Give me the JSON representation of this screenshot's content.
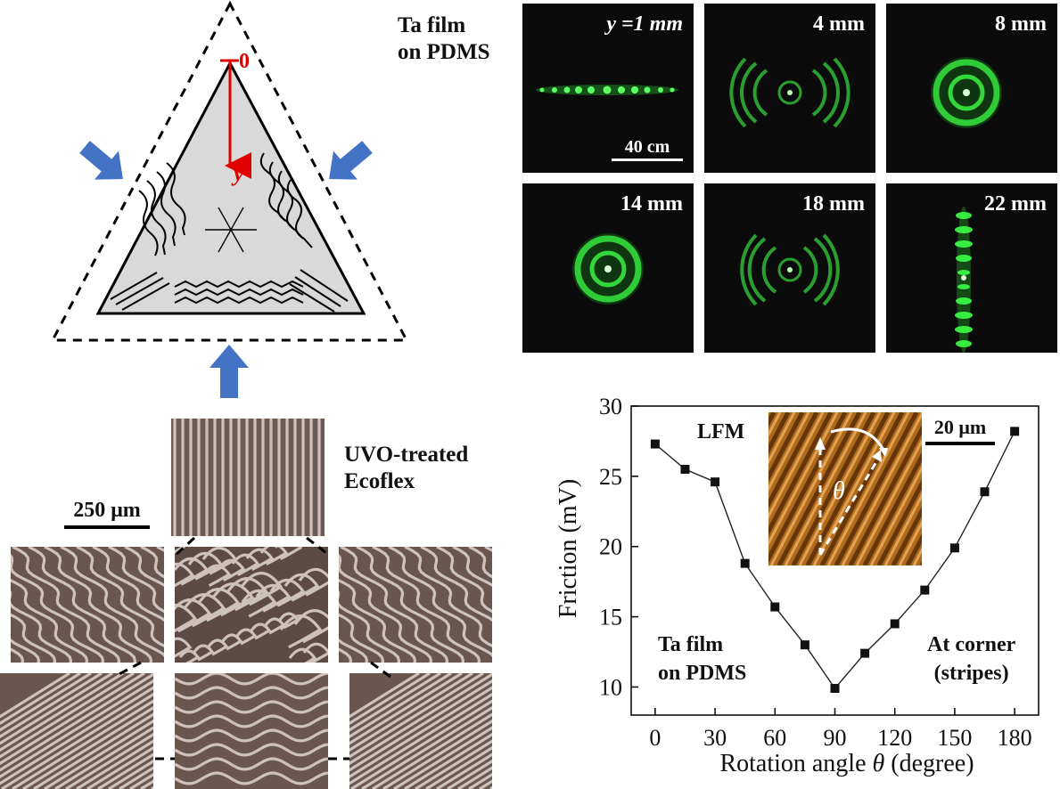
{
  "diagram": {
    "origin_label": "0",
    "axis_label": "y",
    "colors": {
      "arrow_blue": "#4472c4",
      "axis_red": "#e00000",
      "fill_gray": "#d9d9d9"
    }
  },
  "diffraction": {
    "title_line1": "Ta film",
    "title_line2": "on PDMS",
    "scale_label": "40 cm",
    "panels": [
      {
        "label": "y =1 mm",
        "pattern": "horizontal-line"
      },
      {
        "label": "4 mm",
        "pattern": "arcs-horizontal"
      },
      {
        "label": "8 mm",
        "pattern": "rings"
      },
      {
        "label": "14 mm",
        "pattern": "rings"
      },
      {
        "label": "18 mm",
        "pattern": "arcs-horizontal"
      },
      {
        "label": "22 mm",
        "pattern": "vertical-line"
      }
    ],
    "colors": {
      "laser_green": "#3cff46",
      "background": "#0b0b0b"
    }
  },
  "micrographs": {
    "title_line1": "UVO-treated",
    "title_line2": "Ecoflex",
    "scale_label": "250 μm",
    "panels": [
      "straight-vertical-stripes",
      "wavy-stripes",
      "labyrinth",
      "wavy-stripes",
      "diagonal-stripes",
      "wavy-horizontal",
      "diagonal-stripes"
    ]
  },
  "chart_data": {
    "type": "line",
    "x": [
      0,
      15,
      30,
      45,
      60,
      75,
      90,
      105,
      120,
      135,
      150,
      165,
      180
    ],
    "y": [
      27.3,
      25.5,
      24.6,
      18.8,
      15.7,
      13.0,
      9.9,
      12.4,
      14.5,
      16.9,
      19.9,
      23.9,
      28.2
    ],
    "xlabel_prefix": "Rotation angle ",
    "xlabel_symbol": "θ",
    "xlabel_suffix": " (degree)",
    "ylabel": "Friction (mV)",
    "xlim": [
      -12,
      192
    ],
    "ylim": [
      8,
      30
    ],
    "xticks": [
      0,
      30,
      60,
      90,
      120,
      150,
      180
    ],
    "yticks": [
      10,
      15,
      20,
      25,
      30
    ],
    "grid": false,
    "marker": "square",
    "inset": {
      "title": "LFM",
      "scale_label": "20 μm",
      "angle_symbol": "θ"
    },
    "annotations": {
      "left_line1": "Ta film",
      "left_line2": "on PDMS",
      "right_line1": "At corner",
      "right_line2": "(stripes)"
    }
  }
}
